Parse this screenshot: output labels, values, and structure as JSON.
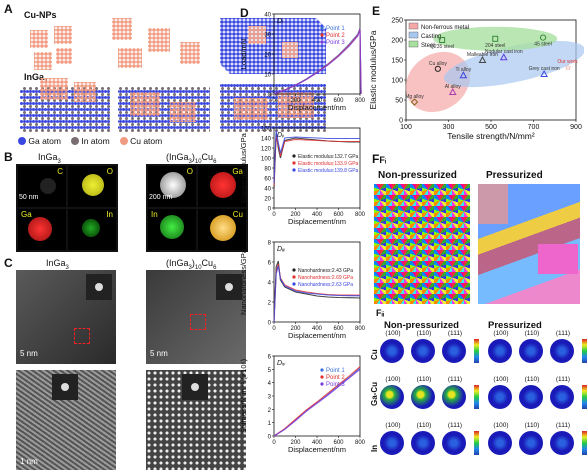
{
  "panels": {
    "A": "A",
    "B": "B",
    "C": "C",
    "D": "D",
    "E": "E",
    "F": "F"
  },
  "panelA": {
    "cu_np": "Cu-NPs",
    "ingas": "InGa",
    "ingas_sub": "3",
    "legend": [
      {
        "label": "Ga atom",
        "color": "#3a48e0"
      },
      {
        "label": "In atom",
        "color": "#7a6e72"
      },
      {
        "label": "Cu atom",
        "color": "#f09a80"
      }
    ]
  },
  "panelB": {
    "left_title": "InGa",
    "left_title_sub": "3",
    "right_title": "(InGa",
    "right_title_sub": "3",
    "right_title_post": ")",
    "right_title_sub2": "10",
    "right_title_post2": "Cu",
    "right_title_sub3": "6",
    "scale_left": "50 nm",
    "scale_right": "200 nm",
    "tiles": [
      "C",
      "O",
      "O",
      "Ga",
      "Ga",
      "In",
      "In",
      "Cu"
    ]
  },
  "panelC": {
    "left_title": "InGa",
    "left_title_sub": "3",
    "right_title": "(InGa",
    "right_title_sub": "3",
    "right_title_post": ")",
    "right_title_sub2": "10",
    "right_title_post2": "Cu",
    "right_title_sub3": "6",
    "scale_top_left": "5 nm",
    "scale_top_right": "5 nm",
    "scale_bottom": "1 nm"
  },
  "panelD": {
    "sub": [
      "Dᵢ",
      "Dᵢᵢ",
      "Dᵢᵢᵢ",
      "Dᵢᵥ"
    ],
    "xlabel": "Displacement/nm",
    "xticks": [
      "0",
      "200",
      "400",
      "600",
      "800"
    ]
  },
  "panelE": {
    "xlabel": "Tensile strength/N/mm²",
    "ylabel": "Elastic modulus/GPa",
    "xticks": [
      "100",
      "300",
      "500",
      "700",
      "900"
    ],
    "yticks": [
      "0",
      "50",
      "100",
      "150",
      "200",
      "250"
    ],
    "legend": [
      "Non-ferrous metal",
      "Casting",
      "Steel"
    ],
    "points": [
      {
        "label": "Q235 steel",
        "x": 270,
        "y": 200
      },
      {
        "label": "204 steel",
        "x": 520,
        "y": 203
      },
      {
        "label": "45 steel",
        "x": 745,
        "y": 206
      },
      {
        "label": "Malleable iron",
        "x": 460,
        "y": 150
      },
      {
        "label": "Nodular cast iron",
        "x": 560,
        "y": 157
      },
      {
        "label": "Our work",
        "x": 860,
        "y": 133
      },
      {
        "label": "Grey cast iron",
        "x": 750,
        "y": 115
      },
      {
        "label": "Cu alloy",
        "x": 250,
        "y": 128
      },
      {
        "label": "Ti alloy",
        "x": 370,
        "y": 112
      },
      {
        "label": "Al alloy",
        "x": 320,
        "y": 70
      },
      {
        "label": "Mg alloy",
        "x": 140,
        "y": 45
      }
    ]
  },
  "panelF": {
    "fi_label": "Fᵢ",
    "fii_label": "Fᵢᵢ",
    "non": "Non-pressurized",
    "pres": "Pressurized",
    "poles": [
      "(100)",
      "(110)",
      "(111)"
    ],
    "rows": [
      "Cu",
      "Ga-Cu",
      "In"
    ]
  },
  "chart_data": [
    {
      "type": "line",
      "title": "Dᵢ",
      "xlabel": "Displacement/nm",
      "ylabel": "Load/mN",
      "xlim": [
        0,
        800
      ],
      "ylim": [
        0,
        40
      ],
      "yticks": [
        0,
        10,
        20,
        30,
        40
      ],
      "series": [
        {
          "name": "Point 1",
          "color": "#3a6fd8",
          "x": [
            0,
            100,
            200,
            300,
            400,
            500,
            600,
            700,
            780,
            800,
            810
          ],
          "y": [
            0,
            2,
            4.5,
            7.5,
            11,
            15,
            19.5,
            25,
            30,
            33,
            0
          ]
        },
        {
          "name": "Point 2",
          "color": "#e03030",
          "x": [
            0,
            100,
            200,
            300,
            400,
            500,
            600,
            700,
            780,
            800,
            810
          ],
          "y": [
            0,
            2,
            4.4,
            7.3,
            10.8,
            14.7,
            19.2,
            24.5,
            29.5,
            32.5,
            0
          ]
        },
        {
          "name": "Point 3",
          "color": "#7a3ae0",
          "x": [
            0,
            100,
            200,
            300,
            400,
            500,
            600,
            700,
            780,
            800,
            810
          ],
          "y": [
            0,
            1.9,
            4.3,
            7.2,
            10.6,
            14.4,
            18.8,
            24,
            29,
            32,
            0
          ]
        }
      ]
    },
    {
      "type": "line",
      "title": "Dᵢᵢ",
      "xlabel": "Displacement/nm",
      "ylabel": "Elastic modulus/GPa",
      "xlim": [
        0,
        800
      ],
      "ylim": [
        0,
        160
      ],
      "yticks": [
        0,
        20,
        40,
        60,
        80,
        100,
        120,
        140,
        160
      ],
      "series": [
        {
          "name": "Elastic modulus:132.7 GPa",
          "color": "#222222",
          "x": [
            0,
            20,
            40,
            60,
            100,
            200,
            300,
            400,
            500,
            600,
            700,
            800
          ],
          "y": [
            40,
            150,
            120,
            100,
            135,
            140,
            138,
            136,
            134,
            133,
            132,
            132
          ]
        },
        {
          "name": "Elastic modulus:133.9 GPa",
          "color": "#e03030",
          "x": [
            0,
            20,
            40,
            60,
            100,
            200,
            300,
            400,
            500,
            600,
            700,
            800
          ],
          "y": [
            45,
            145,
            125,
            105,
            133,
            137,
            136,
            135,
            134,
            133,
            133,
            133
          ]
        },
        {
          "name": "Elastic modulus:139.8 GPa",
          "color": "#3a48e0",
          "x": [
            0,
            20,
            40,
            60,
            100,
            200,
            300,
            400,
            500,
            600,
            700,
            800
          ],
          "y": [
            50,
            155,
            130,
            110,
            140,
            142,
            141,
            140,
            139,
            139,
            139,
            139
          ]
        }
      ]
    },
    {
      "type": "line",
      "title": "Dᵢᵢᵢ",
      "xlabel": "Displacement/nm",
      "ylabel": "Nanohardness/GPa",
      "xlim": [
        0,
        800
      ],
      "ylim": [
        0,
        8
      ],
      "yticks": [
        0,
        2,
        4,
        6,
        8
      ],
      "series": [
        {
          "name": "Nanohardness:2.43 GPa",
          "color": "#222222",
          "x": [
            0,
            20,
            40,
            60,
            100,
            200,
            300,
            400,
            500,
            600,
            700,
            800
          ],
          "y": [
            0,
            5.5,
            6.1,
            4.2,
            3.5,
            3.0,
            2.8,
            2.6,
            2.5,
            2.45,
            2.43,
            2.4
          ]
        },
        {
          "name": "Nanohardness:2.69 GPa",
          "color": "#e03030",
          "x": [
            0,
            20,
            40,
            60,
            100,
            200,
            300,
            400,
            500,
            600,
            700,
            800
          ],
          "y": [
            0,
            5,
            5.8,
            4.4,
            3.7,
            3.2,
            3.0,
            2.85,
            2.75,
            2.7,
            2.69,
            2.68
          ]
        },
        {
          "name": "Nanohardness:2.63 GPa",
          "color": "#3a48e0",
          "x": [
            0,
            20,
            40,
            60,
            100,
            200,
            300,
            400,
            500,
            600,
            700,
            800
          ],
          "y": [
            0,
            4.8,
            5.6,
            4.3,
            3.6,
            3.1,
            2.9,
            2.8,
            2.7,
            2.65,
            2.63,
            2.62
          ]
        }
      ]
    },
    {
      "type": "line",
      "title": "Dᵢᵥ",
      "xlabel": "Displacement/nm",
      "ylabel": "Stiffness/N·m⁻¹ (×10⁵)",
      "xlim": [
        0,
        800
      ],
      "ylim": [
        0,
        6
      ],
      "yticks": [
        0,
        1,
        2,
        3,
        4,
        5,
        6
      ],
      "series": [
        {
          "name": "Point 1",
          "color": "#3a6fd8",
          "x": [
            0,
            100,
            200,
            300,
            400,
            500,
            600,
            700,
            800
          ],
          "y": [
            0,
            0.5,
            1.2,
            1.9,
            2.5,
            3.1,
            3.8,
            4.4,
            5.1
          ]
        },
        {
          "name": "Point 2",
          "color": "#e03030",
          "x": [
            0,
            100,
            200,
            300,
            400,
            500,
            600,
            700,
            800
          ],
          "y": [
            0,
            0.55,
            1.25,
            1.95,
            2.55,
            3.2,
            3.85,
            4.5,
            5.2
          ]
        },
        {
          "name": "Point 3",
          "color": "#7a3ae0",
          "x": [
            0,
            100,
            200,
            300,
            400,
            500,
            600,
            700,
            800
          ],
          "y": [
            0,
            0.5,
            1.15,
            1.85,
            2.45,
            3.05,
            3.7,
            4.35,
            5.0
          ]
        }
      ]
    }
  ]
}
